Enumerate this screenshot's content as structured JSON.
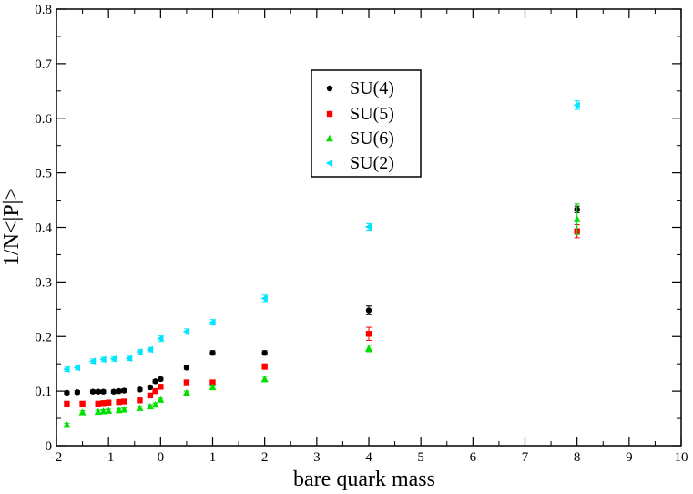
{
  "chart_data": {
    "type": "scatter",
    "xlabel": "bare quark mass",
    "ylabel": "1/N<|P|>",
    "xlim": [
      -2,
      10
    ],
    "ylim": [
      0,
      0.8
    ],
    "xticks": [
      -2,
      -1,
      0,
      1,
      2,
      3,
      4,
      5,
      6,
      7,
      8,
      9,
      10
    ],
    "yticks": [
      0,
      0.1,
      0.2,
      0.3,
      0.4,
      0.5,
      0.6,
      0.7,
      0.8
    ],
    "grid": false,
    "legend_position": "top-center",
    "series": [
      {
        "name": "SU(4)",
        "color": "#000000",
        "marker": "circle",
        "points": [
          {
            "x": -1.8,
            "y": 0.097,
            "err": 0.003
          },
          {
            "x": -1.6,
            "y": 0.098,
            "err": 0.003
          },
          {
            "x": -1.3,
            "y": 0.099,
            "err": 0.003
          },
          {
            "x": -1.2,
            "y": 0.099,
            "err": 0.003
          },
          {
            "x": -1.1,
            "y": 0.099,
            "err": 0.003
          },
          {
            "x": -0.9,
            "y": 0.099,
            "err": 0.003
          },
          {
            "x": -0.8,
            "y": 0.1,
            "err": 0.003
          },
          {
            "x": -0.7,
            "y": 0.101,
            "err": 0.003
          },
          {
            "x": -0.4,
            "y": 0.103,
            "err": 0.003
          },
          {
            "x": -0.2,
            "y": 0.107,
            "err": 0.003
          },
          {
            "x": -0.1,
            "y": 0.118,
            "err": 0.003
          },
          {
            "x": 0.0,
            "y": 0.122,
            "err": 0.003
          },
          {
            "x": 0.5,
            "y": 0.143,
            "err": 0.003
          },
          {
            "x": 1.0,
            "y": 0.17,
            "err": 0.004
          },
          {
            "x": 2.0,
            "y": 0.17,
            "err": 0.004
          },
          {
            "x": 4.0,
            "y": 0.248,
            "err": 0.008
          },
          {
            "x": 8.0,
            "y": 0.433,
            "err": 0.006
          }
        ]
      },
      {
        "name": "SU(5)",
        "color": "#ff0000",
        "marker": "square",
        "points": [
          {
            "x": -1.8,
            "y": 0.077,
            "err": 0.004
          },
          {
            "x": -1.5,
            "y": 0.077,
            "err": 0.004
          },
          {
            "x": -1.2,
            "y": 0.077,
            "err": 0.004
          },
          {
            "x": -1.1,
            "y": 0.078,
            "err": 0.004
          },
          {
            "x": -1.0,
            "y": 0.079,
            "err": 0.004
          },
          {
            "x": -0.8,
            "y": 0.08,
            "err": 0.004
          },
          {
            "x": -0.7,
            "y": 0.081,
            "err": 0.004
          },
          {
            "x": -0.4,
            "y": 0.083,
            "err": 0.004
          },
          {
            "x": -0.2,
            "y": 0.092,
            "err": 0.004
          },
          {
            "x": -0.1,
            "y": 0.1,
            "err": 0.004
          },
          {
            "x": 0.0,
            "y": 0.108,
            "err": 0.004
          },
          {
            "x": 0.5,
            "y": 0.116,
            "err": 0.004
          },
          {
            "x": 1.0,
            "y": 0.116,
            "err": 0.004
          },
          {
            "x": 2.0,
            "y": 0.145,
            "err": 0.005
          },
          {
            "x": 4.0,
            "y": 0.205,
            "err": 0.012
          },
          {
            "x": 8.0,
            "y": 0.393,
            "err": 0.012
          }
        ]
      },
      {
        "name": "SU(6)",
        "color": "#00e000",
        "marker": "triangle-up",
        "points": [
          {
            "x": -1.8,
            "y": 0.038,
            "err": 0.003
          },
          {
            "x": -1.5,
            "y": 0.061,
            "err": 0.003
          },
          {
            "x": -1.2,
            "y": 0.062,
            "err": 0.003
          },
          {
            "x": -1.1,
            "y": 0.063,
            "err": 0.003
          },
          {
            "x": -1.0,
            "y": 0.064,
            "err": 0.003
          },
          {
            "x": -0.8,
            "y": 0.065,
            "err": 0.003
          },
          {
            "x": -0.7,
            "y": 0.066,
            "err": 0.003
          },
          {
            "x": -0.4,
            "y": 0.069,
            "err": 0.003
          },
          {
            "x": -0.2,
            "y": 0.072,
            "err": 0.003
          },
          {
            "x": -0.1,
            "y": 0.075,
            "err": 0.003
          },
          {
            "x": 0.0,
            "y": 0.084,
            "err": 0.003
          },
          {
            "x": 0.5,
            "y": 0.097,
            "err": 0.003
          },
          {
            "x": 1.0,
            "y": 0.107,
            "err": 0.004
          },
          {
            "x": 2.0,
            "y": 0.122,
            "err": 0.005
          },
          {
            "x": 4.0,
            "y": 0.178,
            "err": 0.006
          },
          {
            "x": 8.0,
            "y": 0.415,
            "err": 0.028
          }
        ]
      },
      {
        "name": "SU(2)",
        "color": "#00e5ff",
        "marker": "triangle-left",
        "points": [
          {
            "x": -1.8,
            "y": 0.14,
            "err": 0.004
          },
          {
            "x": -1.6,
            "y": 0.143,
            "err": 0.004
          },
          {
            "x": -1.3,
            "y": 0.155,
            "err": 0.004
          },
          {
            "x": -1.1,
            "y": 0.158,
            "err": 0.004
          },
          {
            "x": -0.9,
            "y": 0.159,
            "err": 0.004
          },
          {
            "x": -0.6,
            "y": 0.16,
            "err": 0.004
          },
          {
            "x": -0.4,
            "y": 0.172,
            "err": 0.004
          },
          {
            "x": -0.2,
            "y": 0.176,
            "err": 0.004
          },
          {
            "x": 0.0,
            "y": 0.196,
            "err": 0.005
          },
          {
            "x": 0.5,
            "y": 0.209,
            "err": 0.005
          },
          {
            "x": 1.0,
            "y": 0.226,
            "err": 0.005
          },
          {
            "x": 2.0,
            "y": 0.27,
            "err": 0.006
          },
          {
            "x": 4.0,
            "y": 0.401,
            "err": 0.006
          },
          {
            "x": 8.0,
            "y": 0.624,
            "err": 0.008
          }
        ]
      }
    ]
  }
}
